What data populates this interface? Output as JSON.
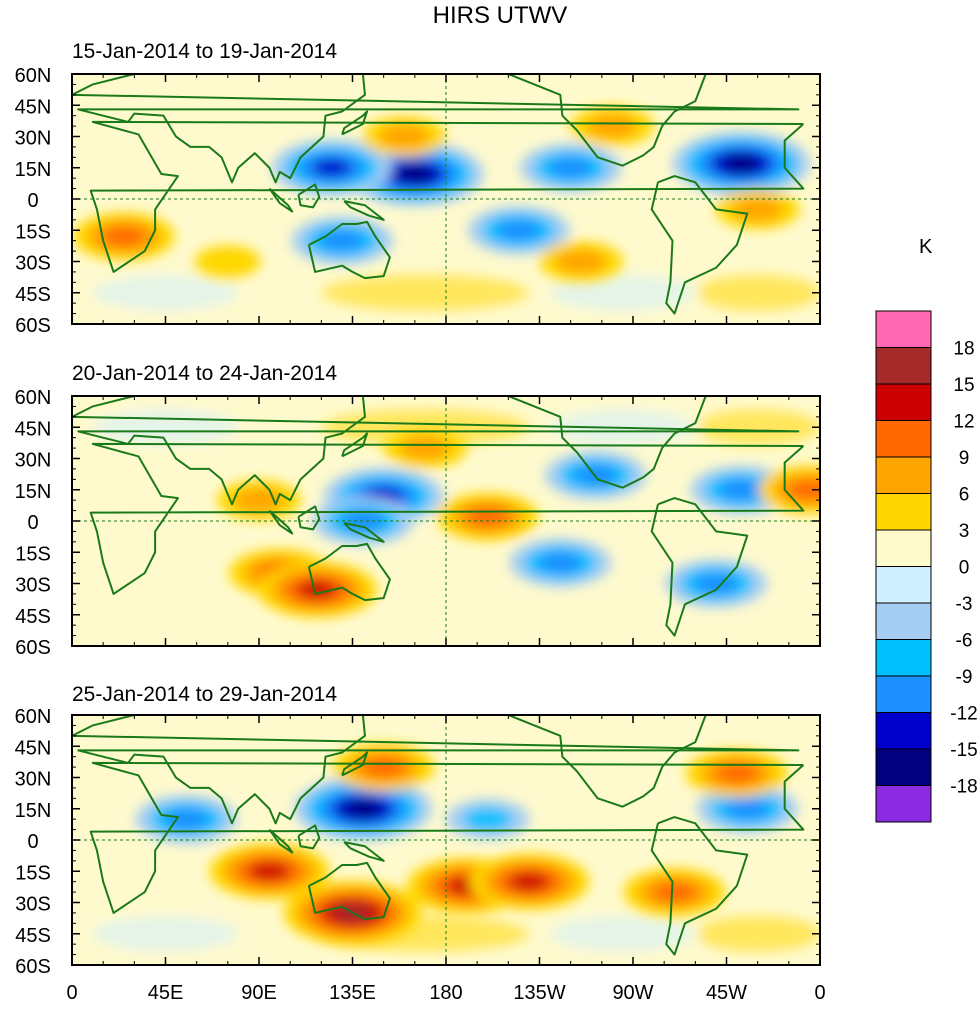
{
  "chart_data": {
    "type": "heatmap",
    "title": "HIRS UTWV",
    "projection": "cylindrical-equidistant",
    "longitude_ticks": [
      "0",
      "45E",
      "90E",
      "135E",
      "180",
      "135W",
      "90W",
      "45W",
      "0"
    ],
    "longitude_values": [
      0,
      45,
      90,
      135,
      180,
      225,
      270,
      315,
      360
    ],
    "latitude_ticks": [
      "60N",
      "45N",
      "30N",
      "15N",
      "0",
      "15S",
      "30S",
      "45S",
      "60S"
    ],
    "latitude_values": [
      60,
      45,
      30,
      15,
      0,
      -15,
      -30,
      -45,
      -60
    ],
    "xlim": [
      0,
      360
    ],
    "ylim": [
      -60,
      60
    ],
    "overlays": [
      "coastlines",
      "equator dashed line",
      "180 meridian dashed line"
    ],
    "colorbar": {
      "unit": "K",
      "levels": [
        18,
        15,
        12,
        9,
        6,
        3,
        0,
        -3,
        -6,
        -9,
        -12,
        -15,
        -18
      ],
      "colors": [
        "#ff69b4",
        "#a52a2a",
        "#cc0000",
        "#ff6a00",
        "#ffa500",
        "#ffd700",
        "#fffacd",
        "#d0f0ff",
        "#a6cef2",
        "#00bfff",
        "#1e90ff",
        "#0000cd",
        "#000080",
        "#8a2be2"
      ]
    },
    "panels": [
      {
        "label": "15-Jan-2014 to 19-Jan-2014",
        "features": [
          {
            "name": "Western Pacific dry/negative anomaly",
            "lon": 165,
            "lat": 12,
            "value": -15
          },
          {
            "name": "Philippine Sea negative",
            "lon": 125,
            "lat": 15,
            "value": -12
          },
          {
            "name": "North Atlantic negative",
            "lon": 322,
            "lat": 17,
            "value": -15
          },
          {
            "name": "Eastern North Pacific negative",
            "lon": 240,
            "lat": 15,
            "value": -9
          },
          {
            "name": "Australia negative",
            "lon": 130,
            "lat": -20,
            "value": -9
          },
          {
            "name": "Central South Pacific negative",
            "lon": 215,
            "lat": -15,
            "value": -9
          },
          {
            "name": "North Pacific positive band",
            "lon": 160,
            "lat": 30,
            "value": 6
          },
          {
            "name": "Southern Africa positive",
            "lon": 25,
            "lat": -18,
            "value": 9
          },
          {
            "name": "United States positive",
            "lon": 260,
            "lat": 35,
            "value": 6
          },
          {
            "name": "Tropical Atlantic positive",
            "lon": 330,
            "lat": -5,
            "value": 6
          },
          {
            "name": "Indian Ocean south positive",
            "lon": 75,
            "lat": -30,
            "value": 3
          },
          {
            "name": "Southeast Pacific positive",
            "lon": 245,
            "lat": -30,
            "value": 6
          }
        ]
      },
      {
        "label": "20-Jan-2014 to 24-Jan-2014",
        "features": [
          {
            "name": "Western Pacific negative",
            "lon": 150,
            "lat": 12,
            "value": -12
          },
          {
            "name": "New Guinea negative",
            "lon": 140,
            "lat": 0,
            "value": -9
          },
          {
            "name": "Mexico negative",
            "lon": 252,
            "lat": 22,
            "value": -9
          },
          {
            "name": "Central Atlantic negative",
            "lon": 322,
            "lat": 15,
            "value": -9
          },
          {
            "name": "South Pacific negative",
            "lon": 235,
            "lat": -20,
            "value": -9
          },
          {
            "name": "South America east negative",
            "lon": 310,
            "lat": -30,
            "value": -9
          },
          {
            "name": "Indian Ocean to Australia positive band",
            "lon": 100,
            "lat": -25,
            "value": 9
          },
          {
            "name": "South of Australia positive max",
            "lon": 118,
            "lat": -33,
            "value": 12
          },
          {
            "name": "North Pacific positive band",
            "lon": 170,
            "lat": 35,
            "value": 6
          },
          {
            "name": "Central Pacific equatorial positive",
            "lon": 200,
            "lat": 2,
            "value": 9
          },
          {
            "name": "West Africa positive",
            "lon": 355,
            "lat": 15,
            "value": 9
          },
          {
            "name": "Bay of Bengal positive",
            "lon": 90,
            "lat": 10,
            "value": 6
          }
        ]
      },
      {
        "label": "25-Jan-2014 to 29-Jan-2014",
        "features": [
          {
            "name": "Western Pacific negative",
            "lon": 140,
            "lat": 15,
            "value": -15
          },
          {
            "name": "Indian Ocean north negative",
            "lon": 55,
            "lat": 10,
            "value": -9
          },
          {
            "name": "North Atlantic negative",
            "lon": 325,
            "lat": 15,
            "value": -9
          },
          {
            "name": "Central Pacific negative",
            "lon": 200,
            "lat": 10,
            "value": -6
          },
          {
            "name": "Australia positive max",
            "lon": 135,
            "lat": -35,
            "value": 15
          },
          {
            "name": "Indian Ocean south positive band",
            "lon": 95,
            "lat": -15,
            "value": 12
          },
          {
            "name": "North Pacific positive band",
            "lon": 150,
            "lat": 35,
            "value": 9
          },
          {
            "name": "South Pacific positive 1",
            "lon": 190,
            "lat": -22,
            "value": 12
          },
          {
            "name": "South Pacific positive 2",
            "lon": 220,
            "lat": -20,
            "value": 12
          },
          {
            "name": "South America west positive",
            "lon": 290,
            "lat": -25,
            "value": 9
          },
          {
            "name": "North Atlantic positive",
            "lon": 320,
            "lat": 32,
            "value": 9
          }
        ]
      }
    ]
  }
}
